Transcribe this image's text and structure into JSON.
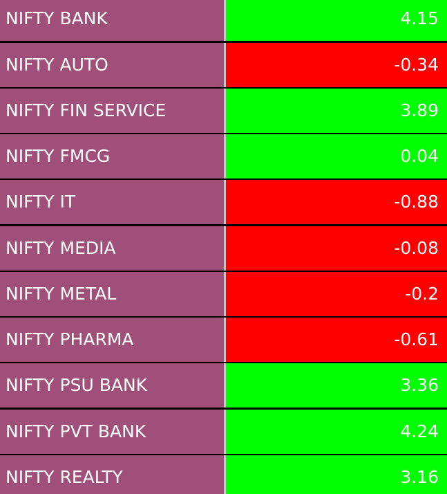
{
  "colors": {
    "name_bg": "#a04f79",
    "positive_bg": "#00ff00",
    "negative_bg": "#ff0000",
    "separator": "#000000",
    "text": "#ffffff"
  },
  "rows": [
    {
      "name": "NIFTY BANK",
      "value": "4.15",
      "status": "positive"
    },
    {
      "name": "NIFTY AUTO",
      "value": "-0.34",
      "status": "negative"
    },
    {
      "name": "NIFTY FIN SERVICE",
      "value": "3.89",
      "status": "positive"
    },
    {
      "name": "NIFTY FMCG",
      "value": "0.04",
      "status": "positive"
    },
    {
      "name": "NIFTY IT",
      "value": "-0.88",
      "status": "negative"
    },
    {
      "name": "NIFTY MEDIA",
      "value": "-0.08",
      "status": "negative"
    },
    {
      "name": "NIFTY METAL",
      "value": "-0.2",
      "status": "negative"
    },
    {
      "name": "NIFTY PHARMA",
      "value": "-0.61",
      "status": "negative"
    },
    {
      "name": "NIFTY PSU BANK",
      "value": "3.36",
      "status": "positive"
    },
    {
      "name": "NIFTY PVT BANK",
      "value": "4.24",
      "status": "positive"
    },
    {
      "name": "NIFTY REALTY",
      "value": "3.16",
      "status": "positive"
    }
  ]
}
